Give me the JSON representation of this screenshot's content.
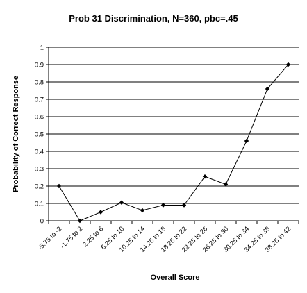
{
  "chart_data": {
    "type": "line",
    "title": "Prob 31 Discrimination, N=360, pbc=.45",
    "xlabel": "Overall Score",
    "ylabel": "Probability of Correct Response",
    "ylim": [
      0,
      1
    ],
    "yticks": [
      "0",
      "0.1",
      "0.2",
      "0.3",
      "0.4",
      "0.5",
      "0.6",
      "0.7",
      "0.8",
      "0.9",
      "1"
    ],
    "grid": true,
    "legend": "none",
    "categories": [
      "-5.75 to -2",
      "-1.75 to 2",
      "2.25 to 6",
      "6.25 to 10",
      "10.25 to 14",
      "14.25 to 18",
      "18.25 to 22",
      "22.25 to 26",
      "26.25 to 30",
      "30.25 to 34",
      "34.25 to 38",
      "38.25 to 42"
    ],
    "series": [
      {
        "values": [
          0.2,
          0.0,
          0.05,
          0.105,
          0.06,
          0.09,
          0.09,
          0.255,
          0.21,
          0.46,
          0.76,
          0.9
        ]
      }
    ],
    "colors": {
      "line": "#000000",
      "marker": "#000000",
      "grid": "#000000"
    }
  }
}
